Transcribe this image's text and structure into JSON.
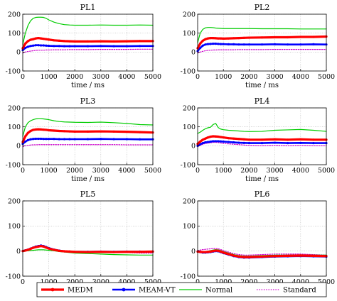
{
  "chart_data": [
    {
      "type": "line",
      "title": "PL1",
      "xlabel": "time / ms",
      "ylabel": "",
      "xlim": [
        0,
        5000
      ],
      "ylim": [
        -100,
        200
      ],
      "xticks": [
        0,
        1000,
        2000,
        3000,
        4000,
        5000
      ],
      "yticks": [
        -100,
        0,
        100,
        200
      ],
      "grid": true,
      "x": [
        0,
        100,
        200,
        300,
        400,
        500,
        600,
        700,
        800,
        900,
        1000,
        1200,
        1400,
        1600,
        1800,
        2000,
        2500,
        3000,
        3500,
        4000,
        4500,
        5000
      ],
      "series": [
        {
          "name": "MEDM",
          "values": [
            20,
            45,
            58,
            65,
            68,
            72,
            74,
            72,
            70,
            68,
            66,
            62,
            60,
            58,
            57,
            56,
            56,
            57,
            56,
            57,
            58,
            58
          ]
        },
        {
          "name": "MEAM-VT",
          "values": [
            10,
            22,
            28,
            32,
            34,
            36,
            36,
            35,
            35,
            34,
            33,
            32,
            32,
            31,
            31,
            31,
            31,
            32,
            31,
            31,
            32,
            32
          ]
        },
        {
          "name": "Normal",
          "values": [
            40,
            100,
            140,
            165,
            178,
            183,
            184,
            184,
            183,
            178,
            170,
            158,
            150,
            145,
            143,
            142,
            142,
            143,
            142,
            142,
            143,
            142
          ]
        },
        {
          "name": "Standard",
          "values": [
            -5,
            0,
            3,
            5,
            7,
            9,
            10,
            10,
            10,
            11,
            11,
            12,
            12,
            12,
            13,
            13,
            13,
            14,
            14,
            14,
            15,
            15
          ]
        }
      ]
    },
    {
      "type": "line",
      "title": "PL2",
      "xlabel": "time / ms",
      "ylabel": "",
      "xlim": [
        0,
        5000
      ],
      "ylim": [
        -100,
        200
      ],
      "xticks": [
        0,
        1000,
        2000,
        3000,
        4000,
        5000
      ],
      "yticks": [
        -100,
        0,
        100,
        200
      ],
      "grid": true,
      "x": [
        0,
        100,
        200,
        300,
        400,
        500,
        600,
        700,
        800,
        900,
        1000,
        1200,
        1400,
        1600,
        1800,
        2000,
        2500,
        3000,
        3500,
        4000,
        4500,
        5000
      ],
      "series": [
        {
          "name": "MEDM",
          "values": [
            20,
            45,
            60,
            68,
            72,
            74,
            74,
            73,
            72,
            72,
            71,
            72,
            73,
            74,
            75,
            76,
            77,
            78,
            78,
            80,
            80,
            82
          ]
        },
        {
          "name": "MEAM-VT",
          "values": [
            5,
            22,
            34,
            40,
            42,
            43,
            44,
            44,
            43,
            42,
            42,
            41,
            41,
            40,
            40,
            40,
            40,
            41,
            40,
            40,
            41,
            40
          ]
        },
        {
          "name": "Normal",
          "values": [
            50,
            100,
            120,
            128,
            130,
            130,
            129,
            127,
            126,
            125,
            124,
            124,
            124,
            124,
            124,
            124,
            123,
            123,
            123,
            122,
            122,
            122
          ]
        },
        {
          "name": "Standard",
          "values": [
            -5,
            0,
            4,
            7,
            9,
            10,
            11,
            11,
            12,
            12,
            12,
            12,
            12,
            13,
            13,
            13,
            13,
            14,
            14,
            14,
            14,
            14
          ]
        }
      ]
    },
    {
      "type": "line",
      "title": "PL3",
      "xlabel": "time / ms",
      "ylabel": "",
      "xlim": [
        0,
        5000
      ],
      "ylim": [
        -100,
        200
      ],
      "xticks": [
        0,
        1000,
        2000,
        3000,
        4000,
        5000
      ],
      "yticks": [
        -100,
        0,
        100,
        200
      ],
      "grid": true,
      "x": [
        0,
        100,
        200,
        300,
        400,
        500,
        600,
        700,
        800,
        900,
        1000,
        1200,
        1400,
        1600,
        1800,
        2000,
        2500,
        3000,
        3500,
        4000,
        4500,
        5000
      ],
      "series": [
        {
          "name": "MEDM",
          "values": [
            20,
            50,
            68,
            78,
            84,
            86,
            87,
            86,
            85,
            84,
            82,
            80,
            78,
            77,
            76,
            75,
            75,
            76,
            75,
            74,
            72,
            70
          ]
        },
        {
          "name": "MEAM-VT",
          "values": [
            10,
            22,
            30,
            34,
            36,
            37,
            37,
            37,
            36,
            36,
            36,
            36,
            35,
            35,
            35,
            35,
            35,
            36,
            35,
            35,
            34,
            34
          ]
        },
        {
          "name": "Normal",
          "values": [
            50,
            100,
            122,
            132,
            138,
            142,
            144,
            144,
            142,
            140,
            138,
            132,
            128,
            126,
            125,
            124,
            123,
            125,
            122,
            118,
            112,
            110
          ]
        },
        {
          "name": "Standard",
          "values": [
            -5,
            0,
            2,
            4,
            5,
            5,
            6,
            6,
            6,
            6,
            6,
            6,
            6,
            6,
            6,
            6,
            6,
            6,
            6,
            5,
            5,
            5
          ]
        }
      ]
    },
    {
      "type": "line",
      "title": "PL4",
      "xlabel": "time / ms",
      "ylabel": "",
      "xlim": [
        0,
        5000
      ],
      "ylim": [
        -100,
        200
      ],
      "xticks": [
        0,
        1000,
        2000,
        3000,
        4000,
        5000
      ],
      "yticks": [
        -100,
        0,
        100,
        200
      ],
      "grid": true,
      "x": [
        0,
        100,
        200,
        300,
        400,
        500,
        600,
        700,
        800,
        900,
        1000,
        1200,
        1400,
        1600,
        1800,
        2000,
        2500,
        3000,
        3500,
        4000,
        4500,
        5000
      ],
      "series": [
        {
          "name": "MEDM",
          "values": [
            10,
            22,
            32,
            38,
            44,
            48,
            50,
            49,
            48,
            46,
            44,
            40,
            38,
            36,
            34,
            32,
            32,
            34,
            32,
            34,
            32,
            32
          ]
        },
        {
          "name": "MEAM-VT",
          "values": [
            0,
            8,
            14,
            18,
            20,
            22,
            24,
            24,
            24,
            23,
            22,
            20,
            18,
            16,
            15,
            14,
            14,
            16,
            14,
            15,
            14,
            14
          ]
        },
        {
          "name": "Normal",
          "values": [
            65,
            72,
            82,
            90,
            95,
            98,
            112,
            118,
            96,
            88,
            85,
            82,
            80,
            78,
            76,
            75,
            76,
            82,
            84,
            86,
            82,
            76
          ]
        },
        {
          "name": "Standard",
          "values": [
            -5,
            2,
            8,
            12,
            14,
            16,
            18,
            18,
            17,
            15,
            12,
            10,
            8,
            6,
            4,
            2,
            0,
            2,
            0,
            2,
            0,
            0
          ]
        }
      ]
    },
    {
      "type": "line",
      "title": "PL5",
      "xlabel": "time / ms",
      "ylabel": "",
      "xlim": [
        0,
        5000
      ],
      "ylim": [
        -100,
        200
      ],
      "xticks": [
        0,
        1000,
        2000,
        3000,
        4000,
        5000
      ],
      "yticks": [
        -100,
        0,
        100,
        200
      ],
      "grid": true,
      "x": [
        0,
        100,
        200,
        300,
        400,
        500,
        600,
        700,
        800,
        900,
        1000,
        1200,
        1400,
        1600,
        1800,
        2000,
        2500,
        3000,
        3500,
        4000,
        4500,
        5000
      ],
      "series": [
        {
          "name": "MEDM",
          "values": [
            0,
            2,
            5,
            9,
            13,
            16,
            18,
            20,
            18,
            14,
            10,
            5,
            1,
            -1,
            -2,
            -3,
            -4,
            -3,
            -4,
            -3,
            -3,
            -2
          ]
        },
        {
          "name": "MEAM-VT",
          "values": [
            0,
            3,
            6,
            10,
            14,
            18,
            20,
            22,
            20,
            16,
            12,
            6,
            2,
            -1,
            -2,
            -3,
            -3,
            -2,
            -3,
            -2,
            -2,
            -2
          ]
        },
        {
          "name": "Normal",
          "values": [
            0,
            0,
            1,
            2,
            3,
            4,
            5,
            5,
            5,
            4,
            3,
            1,
            -2,
            -4,
            -6,
            -8,
            -10,
            -12,
            -14,
            -15,
            -16,
            -16
          ]
        },
        {
          "name": "Standard",
          "values": [
            0,
            2,
            4,
            8,
            12,
            14,
            16,
            18,
            16,
            12,
            8,
            3,
            0,
            -2,
            -3,
            -4,
            -4,
            -5,
            -6,
            -6,
            -8,
            -8
          ]
        }
      ]
    },
    {
      "type": "line",
      "title": "PL6",
      "xlabel": "time / ms",
      "ylabel": "",
      "xlim": [
        0,
        5000
      ],
      "ylim": [
        -100,
        200
      ],
      "xticks": [
        0,
        1000,
        2000,
        3000,
        4000,
        5000
      ],
      "yticks": [
        -100,
        0,
        100,
        200
      ],
      "grid": true,
      "x": [
        0,
        100,
        200,
        300,
        400,
        500,
        600,
        700,
        800,
        900,
        1000,
        1200,
        1400,
        1600,
        1800,
        2000,
        2500,
        3000,
        3500,
        4000,
        4500,
        5000
      ],
      "series": [
        {
          "name": "MEDM",
          "values": [
            -2,
            -3,
            -4,
            -4,
            -3,
            -2,
            0,
            2,
            1,
            -2,
            -6,
            -12,
            -18,
            -22,
            -24,
            -24,
            -22,
            -20,
            -19,
            -18,
            -19,
            -20
          ]
        },
        {
          "name": "MEAM-VT",
          "values": [
            -2,
            -4,
            -6,
            -6,
            -5,
            -4,
            -2,
            0,
            -1,
            -4,
            -8,
            -14,
            -20,
            -24,
            -26,
            -26,
            -24,
            -22,
            -21,
            -20,
            -21,
            -22
          ]
        },
        {
          "name": "Normal",
          "values": [
            0,
            -2,
            -3,
            -2,
            0,
            2,
            4,
            6,
            5,
            2,
            -2,
            -8,
            -14,
            -18,
            -20,
            -20,
            -18,
            -16,
            -16,
            -15,
            -16,
            -16
          ]
        },
        {
          "name": "Standard",
          "values": [
            2,
            4,
            6,
            7,
            8,
            9,
            10,
            10,
            9,
            6,
            2,
            -4,
            -10,
            -14,
            -16,
            -16,
            -14,
            -12,
            -12,
            -12,
            -14,
            -16
          ]
        }
      ]
    }
  ],
  "legend": {
    "placement": "bottom",
    "items": [
      {
        "name": "MEDM",
        "color": "#ff0000",
        "style": "solid-thick-markers"
      },
      {
        "name": "MEAM-VT",
        "color": "#0000ff",
        "style": "solid-thick-markers"
      },
      {
        "name": "Normal",
        "color": "#00cc00",
        "style": "solid"
      },
      {
        "name": "Standard",
        "color": "#cc00cc",
        "style": "dotted"
      }
    ]
  },
  "colors": {
    "MEDM": "#ff0000",
    "MEAM-VT": "#0000ff",
    "Normal": "#00cc00",
    "Standard": "#cc00cc"
  }
}
